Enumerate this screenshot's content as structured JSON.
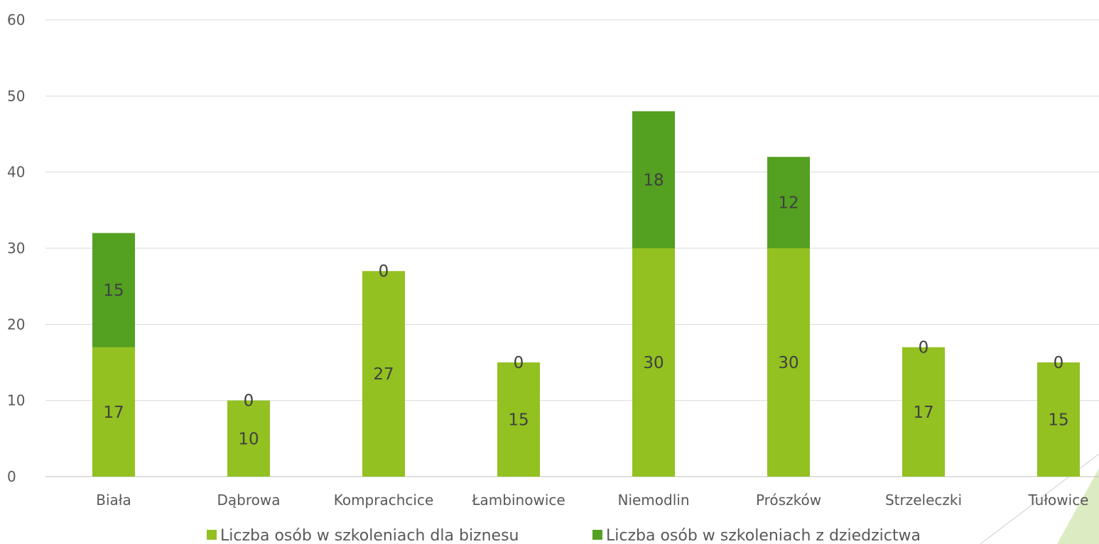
{
  "chart_data": {
    "type": "bar",
    "stacked": true,
    "categories": [
      "Biała",
      "Dąbrowa",
      "Komprachcice",
      "Łambinowice",
      "Niemodlin",
      "Prószków",
      "Strzeleczki",
      "Tułowice"
    ],
    "series": [
      {
        "name": "Liczba osób w szkoleniach dla biznesu",
        "color": "#92c121",
        "values": [
          17,
          10,
          27,
          15,
          30,
          30,
          17,
          15
        ]
      },
      {
        "name": "Liczba osób w szkoleniach z dziedzictwa",
        "color": "#54a021",
        "values": [
          15,
          0,
          0,
          0,
          18,
          12,
          0,
          0
        ]
      }
    ],
    "ylim": [
      0,
      60
    ],
    "yticks": [
      0,
      10,
      20,
      30,
      40,
      50,
      60
    ],
    "grid": true,
    "legend_position": "bottom"
  }
}
